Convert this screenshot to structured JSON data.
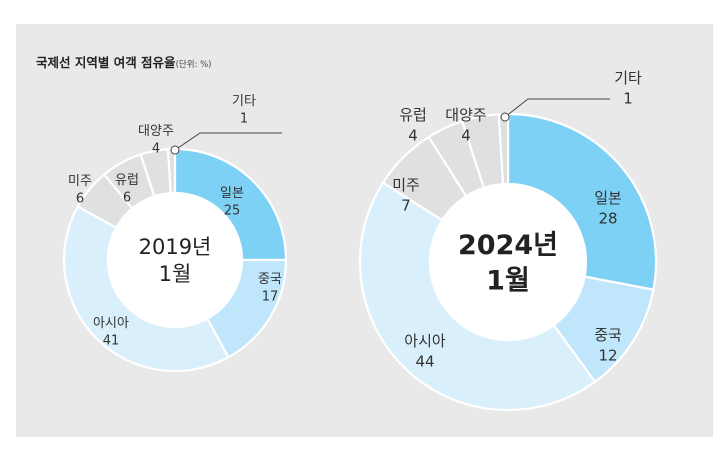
{
  "chart_title": "국제선 지역별 여객 점유율",
  "chart_unit": "(단위: %)",
  "colors": {
    "panel": "#e9e9e9",
    "일본": "#7dd1f5",
    "중국": "#bfe6fb",
    "아시아": "#d9f0fc",
    "미주": "#e0e0e0",
    "유럽": "#e0e0e0",
    "대양주": "#e0e0e0",
    "기타": "#e0e0e0"
  },
  "chart_data": [
    {
      "type": "pie",
      "title": "2019년 1월",
      "title_lines": [
        "2019년",
        "1월"
      ],
      "slices": [
        {
          "label": "일본",
          "value": 25
        },
        {
          "label": "중국",
          "value": 17
        },
        {
          "label": "아시아",
          "value": 41
        },
        {
          "label": "미주",
          "value": 6
        },
        {
          "label": "유럽",
          "value": 6
        },
        {
          "label": "대양주",
          "value": 4
        },
        {
          "label": "기타",
          "value": 1
        }
      ]
    },
    {
      "type": "pie",
      "title": "2024년 1월",
      "title_lines": [
        "2024년",
        "1월"
      ],
      "slices": [
        {
          "label": "일본",
          "value": 28
        },
        {
          "label": "중국",
          "value": 12
        },
        {
          "label": "아시아",
          "value": 44
        },
        {
          "label": "미주",
          "value": 7
        },
        {
          "label": "유럽",
          "value": 4
        },
        {
          "label": "대양주",
          "value": 4
        },
        {
          "label": "기타",
          "value": 1
        }
      ]
    }
  ]
}
